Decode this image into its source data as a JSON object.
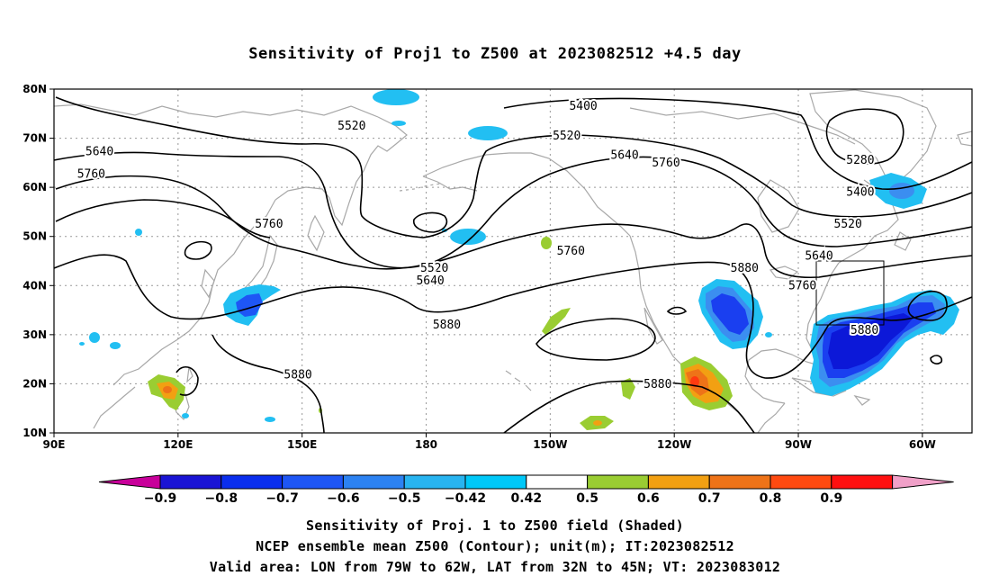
{
  "title": "Sensitivity of Proj1 to Z500 at 2023082512 +4.5 day",
  "map": {
    "lat_ticks": [
      "80N",
      "70N",
      "60N",
      "50N",
      "40N",
      "30N",
      "20N",
      "10N"
    ],
    "lon_ticks": [
      "90E",
      "120E",
      "150E",
      "180",
      "150W",
      "120W",
      "90W",
      "60W"
    ],
    "contour_labels": [
      {
        "text": "5400",
        "lon": -142,
        "lat": 76.5
      },
      {
        "text": "5520",
        "lon": 162,
        "lat": 72.5
      },
      {
        "text": "5520",
        "lon": -146,
        "lat": 70.5
      },
      {
        "text": "5640",
        "lon": 101,
        "lat": 67.3
      },
      {
        "text": "5640",
        "lon": -132,
        "lat": 66.5
      },
      {
        "text": "5760",
        "lon": 99,
        "lat": 62.7
      },
      {
        "text": "5760",
        "lon": -122,
        "lat": 65.0
      },
      {
        "text": "5280",
        "lon": -75,
        "lat": 65.5
      },
      {
        "text": "5400",
        "lon": -75,
        "lat": 59.0
      },
      {
        "text": "5520",
        "lon": -78,
        "lat": 52.5
      },
      {
        "text": "5760",
        "lon": 142,
        "lat": 52.5
      },
      {
        "text": "5520",
        "lon": -178,
        "lat": 43.5
      },
      {
        "text": "5640",
        "lon": -179,
        "lat": 41.0
      },
      {
        "text": "5760",
        "lon": -145,
        "lat": 47.0
      },
      {
        "text": "5880",
        "lon": -103,
        "lat": 43.5
      },
      {
        "text": "5640",
        "lon": -85,
        "lat": 46.0
      },
      {
        "text": "5760",
        "lon": -89,
        "lat": 40.0
      },
      {
        "text": "5880",
        "lon": -175,
        "lat": 32.0
      },
      {
        "text": "5880",
        "lon": -74,
        "lat": 30.9
      },
      {
        "text": "5880",
        "lon": 149,
        "lat": 21.8
      },
      {
        "text": "5880",
        "lon": -124,
        "lat": 19.9
      }
    ]
  },
  "sensitivity_box": {
    "lon_w": "79W",
    "lon_e": "62W",
    "lat_s": "32N",
    "lat_n": "45N"
  },
  "colorbar": {
    "labels": [
      "-0.9",
      "-0.8",
      "-0.7",
      "-0.6",
      "-0.5",
      "-0.42",
      "0.42",
      "0.5",
      "0.6",
      "0.7",
      "0.8",
      "0.9"
    ],
    "colors": [
      "#c8009a",
      "#1a14d4",
      "#0a2eee",
      "#1e56f5",
      "#2c82f2",
      "#28b4f0",
      "#00c8f8",
      "#ffffff",
      "#9acd32",
      "#f2a012",
      "#ee7318",
      "#ff4a10",
      "#ff1010",
      "#f0a0c8"
    ]
  },
  "shading_colors": {
    "cyan": "#22bff2",
    "sky": "#3b8ef0",
    "blue": "#1a3ff0",
    "darkblue": "#0c18d8",
    "green": "#9acd32",
    "orange": "#f2a012",
    "darkorange": "#ee7318",
    "red": "#ff3a10"
  },
  "captions": [
    "Sensitivity of Proj. 1 to Z500 field (Shaded)",
    "NCEP ensemble mean Z500 (Contour); unit(m); IT:2023082512",
    "Valid area: LON from 79W to 62W, LAT from 32N to 45N; VT: 2023083012"
  ]
}
